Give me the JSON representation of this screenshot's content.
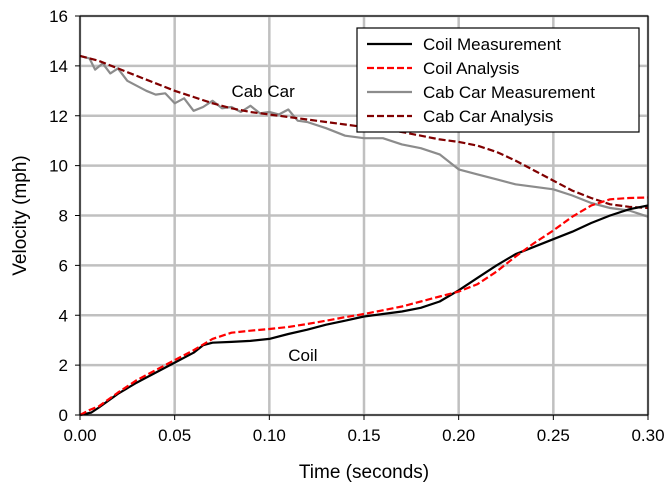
{
  "chart_data": {
    "type": "line",
    "xlabel": "Time (seconds)",
    "ylabel": "Velocity (mph)",
    "xlim": [
      0,
      0.3
    ],
    "ylim": [
      0,
      16
    ],
    "xticks": [
      0,
      0.05,
      0.1,
      0.15,
      0.2,
      0.25,
      0.3
    ],
    "xtick_labels": [
      "0.00",
      "0.05",
      "0.10",
      "0.15",
      "0.20",
      "0.25",
      "0.30"
    ],
    "yticks": [
      0,
      2,
      4,
      6,
      8,
      10,
      12,
      14,
      16
    ],
    "ytick_labels": [
      "0",
      "2",
      "4",
      "6",
      "8",
      "10",
      "12",
      "14",
      "16"
    ],
    "grid": true,
    "legend_position": "top-right",
    "annotations": [
      {
        "text": "Cab Car",
        "x": 0.08,
        "y": 13.0
      },
      {
        "text": "Coil",
        "x": 0.11,
        "y": 2.4
      }
    ],
    "series": [
      {
        "name": "Coil Measurement",
        "color": "#000000",
        "dash": "solid",
        "x": [
          0,
          0.003,
          0.006,
          0.01,
          0.02,
          0.03,
          0.04,
          0.05,
          0.06,
          0.065,
          0.07,
          0.08,
          0.09,
          0.1,
          0.11,
          0.12,
          0.13,
          0.14,
          0.15,
          0.16,
          0.17,
          0.18,
          0.19,
          0.2,
          0.21,
          0.22,
          0.23,
          0.24,
          0.25,
          0.26,
          0.27,
          0.28,
          0.29,
          0.3
        ],
        "y": [
          0,
          0.05,
          0.1,
          0.3,
          0.85,
          1.3,
          1.7,
          2.1,
          2.5,
          2.8,
          2.9,
          2.93,
          2.97,
          3.05,
          3.25,
          3.42,
          3.62,
          3.78,
          3.95,
          4.05,
          4.15,
          4.3,
          4.55,
          5.0,
          5.5,
          6.0,
          6.45,
          6.75,
          7.05,
          7.35,
          7.7,
          8.0,
          8.25,
          8.4
        ]
      },
      {
        "name": "Coil Analysis",
        "color": "#ff0000",
        "dash": "dashed",
        "x": [
          0,
          0.005,
          0.01,
          0.02,
          0.03,
          0.04,
          0.05,
          0.06,
          0.07,
          0.08,
          0.09,
          0.1,
          0.11,
          0.12,
          0.13,
          0.14,
          0.15,
          0.16,
          0.17,
          0.18,
          0.19,
          0.2,
          0.21,
          0.22,
          0.23,
          0.24,
          0.25,
          0.26,
          0.27,
          0.28,
          0.29,
          0.3
        ],
        "y": [
          0,
          0.2,
          0.35,
          0.9,
          1.4,
          1.8,
          2.2,
          2.6,
          3.05,
          3.3,
          3.38,
          3.45,
          3.53,
          3.65,
          3.78,
          3.92,
          4.05,
          4.2,
          4.35,
          4.55,
          4.75,
          4.95,
          5.25,
          5.75,
          6.35,
          6.9,
          7.4,
          7.95,
          8.4,
          8.65,
          8.7,
          8.72
        ]
      },
      {
        "name": "Cab Car Measurement",
        "color": "#8c8c8c",
        "dash": "solid",
        "x": [
          0,
          0.005,
          0.008,
          0.012,
          0.016,
          0.02,
          0.025,
          0.03,
          0.035,
          0.04,
          0.045,
          0.05,
          0.055,
          0.06,
          0.065,
          0.07,
          0.075,
          0.08,
          0.085,
          0.09,
          0.095,
          0.1,
          0.105,
          0.11,
          0.115,
          0.12,
          0.13,
          0.14,
          0.15,
          0.16,
          0.17,
          0.18,
          0.19,
          0.2,
          0.21,
          0.22,
          0.23,
          0.24,
          0.25,
          0.26,
          0.27,
          0.28,
          0.29,
          0.3
        ],
        "y": [
          14.4,
          14.3,
          13.85,
          14.1,
          13.7,
          13.9,
          13.4,
          13.2,
          13.0,
          12.85,
          12.9,
          12.5,
          12.7,
          12.2,
          12.35,
          12.6,
          12.3,
          12.35,
          12.15,
          12.4,
          12.1,
          12.15,
          12.05,
          12.25,
          11.8,
          11.75,
          11.5,
          11.2,
          11.1,
          11.1,
          10.85,
          10.7,
          10.45,
          9.85,
          9.65,
          9.45,
          9.25,
          9.15,
          9.05,
          8.8,
          8.5,
          8.3,
          8.2,
          7.95
        ]
      },
      {
        "name": "Cab Car Analysis",
        "color": "#800000",
        "dash": "dashed",
        "x": [
          0,
          0.01,
          0.02,
          0.03,
          0.04,
          0.05,
          0.06,
          0.07,
          0.08,
          0.09,
          0.1,
          0.11,
          0.12,
          0.13,
          0.14,
          0.15,
          0.16,
          0.17,
          0.18,
          0.19,
          0.2,
          0.21,
          0.22,
          0.23,
          0.24,
          0.25,
          0.26,
          0.27,
          0.28,
          0.29,
          0.3
        ],
        "y": [
          14.4,
          14.2,
          13.9,
          13.6,
          13.3,
          13.0,
          12.75,
          12.5,
          12.3,
          12.15,
          12.05,
          11.95,
          11.85,
          11.75,
          11.65,
          11.55,
          11.45,
          11.35,
          11.2,
          11.05,
          10.95,
          10.8,
          10.55,
          10.2,
          9.8,
          9.4,
          9.0,
          8.7,
          8.45,
          8.35,
          8.3
        ]
      }
    ]
  }
}
